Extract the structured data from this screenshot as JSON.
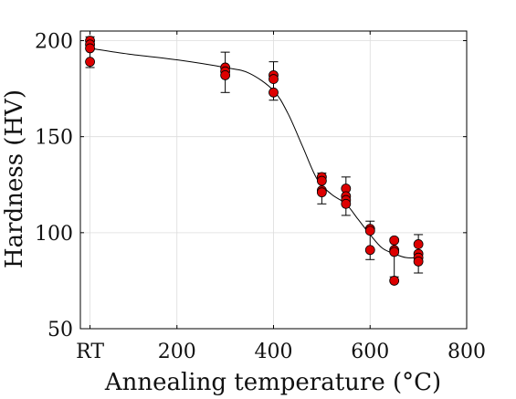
{
  "chart_data": {
    "type": "scatter",
    "xlabel": "Annealing temperature (°C)",
    "ylabel": "Hardness (HV)",
    "xlim": [
      0,
      800
    ],
    "ylim": [
      50,
      205
    ],
    "x_ticks": [
      {
        "value": 20,
        "label": "RT"
      },
      {
        "value": 200,
        "label": "200"
      },
      {
        "value": 400,
        "label": "400"
      },
      {
        "value": 600,
        "label": "600"
      },
      {
        "value": 800,
        "label": "800"
      }
    ],
    "y_ticks": [
      {
        "value": 50,
        "label": "50"
      },
      {
        "value": 100,
        "label": "100"
      },
      {
        "value": 150,
        "label": "150"
      },
      {
        "value": 200,
        "label": "200"
      }
    ],
    "grid": true,
    "series": [
      {
        "type": "scatter",
        "color": "#dd0000",
        "points": [
          {
            "x": 20,
            "y": 200
          },
          {
            "x": 20,
            "y": 198
          },
          {
            "x": 20,
            "y": 196
          },
          {
            "x": 20,
            "y": 189
          },
          {
            "x": 300,
            "y": 186
          },
          {
            "x": 300,
            "y": 184
          },
          {
            "x": 300,
            "y": 182
          },
          {
            "x": 400,
            "y": 182
          },
          {
            "x": 400,
            "y": 180
          },
          {
            "x": 400,
            "y": 173
          },
          {
            "x": 500,
            "y": 129
          },
          {
            "x": 500,
            "y": 127
          },
          {
            "x": 500,
            "y": 122
          },
          {
            "x": 500,
            "y": 121
          },
          {
            "x": 550,
            "y": 123
          },
          {
            "x": 550,
            "y": 119
          },
          {
            "x": 550,
            "y": 117
          },
          {
            "x": 550,
            "y": 115
          },
          {
            "x": 600,
            "y": 102
          },
          {
            "x": 600,
            "y": 101
          },
          {
            "x": 600,
            "y": 91
          },
          {
            "x": 650,
            "y": 96
          },
          {
            "x": 650,
            "y": 91
          },
          {
            "x": 650,
            "y": 90
          },
          {
            "x": 650,
            "y": 75
          },
          {
            "x": 700,
            "y": 94
          },
          {
            "x": 700,
            "y": 89
          },
          {
            "x": 700,
            "y": 87
          },
          {
            "x": 700,
            "y": 85
          }
        ]
      },
      {
        "type": "errorbar",
        "color": "#000000",
        "bars": [
          {
            "x": 20,
            "low": 186,
            "high": 202
          },
          {
            "x": 300,
            "low": 173,
            "high": 194
          },
          {
            "x": 400,
            "low": 169,
            "high": 189
          },
          {
            "x": 500,
            "low": 115,
            "high": 131
          },
          {
            "x": 550,
            "low": 109,
            "high": 129
          },
          {
            "x": 600,
            "low": 86,
            "high": 106
          },
          {
            "x": 650,
            "low": 77,
            "high": 97
          },
          {
            "x": 700,
            "low": 79,
            "high": 99
          }
        ]
      },
      {
        "type": "line",
        "color": "#000000",
        "points": [
          {
            "x": 20,
            "y": 196
          },
          {
            "x": 100,
            "y": 193
          },
          {
            "x": 200,
            "y": 190
          },
          {
            "x": 300,
            "y": 186
          },
          {
            "x": 350,
            "y": 183
          },
          {
            "x": 400,
            "y": 174
          },
          {
            "x": 430,
            "y": 162
          },
          {
            "x": 460,
            "y": 145
          },
          {
            "x": 490,
            "y": 128
          },
          {
            "x": 520,
            "y": 120
          },
          {
            "x": 550,
            "y": 115
          },
          {
            "x": 575,
            "y": 107
          },
          {
            "x": 600,
            "y": 99
          },
          {
            "x": 625,
            "y": 92
          },
          {
            "x": 650,
            "y": 89
          },
          {
            "x": 675,
            "y": 87
          },
          {
            "x": 700,
            "y": 87
          }
        ]
      }
    ]
  }
}
